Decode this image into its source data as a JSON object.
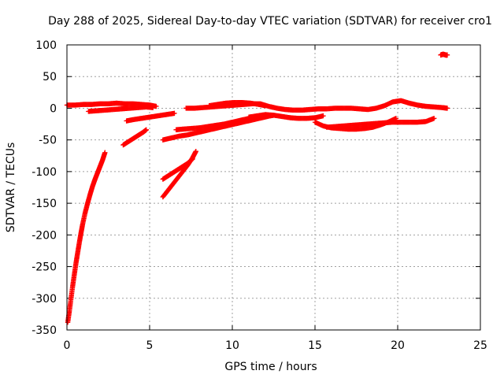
{
  "chart_data": {
    "type": "scatter",
    "title": "Day 288 of 2025, Sidereal Day-to-day VTEC variation (SDTVAR) for receiver cro1",
    "xlabel": "GPS time / hours",
    "ylabel": "SDTVAR / TECUs",
    "xlim": [
      0,
      25
    ],
    "ylim": [
      -350,
      100
    ],
    "xticks": [
      "0",
      "5",
      "10",
      "15",
      "20",
      "25"
    ],
    "yticks": [
      "100",
      "50",
      "0",
      "-50",
      "-100",
      "-150",
      "-200",
      "-250",
      "-300",
      "-350"
    ],
    "grid": true,
    "marker": "plus",
    "color": "#ff0000",
    "series": [
      {
        "x": [
          0.0,
          0.5,
          1.0,
          1.5,
          2.0,
          2.5,
          3.0,
          3.5,
          4.0,
          4.5,
          5.0,
          5.4
        ],
        "y": [
          5,
          5,
          6,
          6,
          7,
          7,
          8,
          7,
          7,
          6,
          5,
          3
        ]
      },
      {
        "x": [
          1.3,
          1.8,
          2.3,
          2.8,
          3.3,
          3.8,
          4.3,
          4.8,
          5.2
        ],
        "y": [
          -5,
          -4,
          -3,
          -2,
          -1,
          0,
          1,
          2,
          1
        ]
      },
      {
        "x": [
          0.05,
          0.15,
          0.25,
          0.35,
          0.45,
          0.55,
          0.65,
          0.75,
          0.85,
          0.95,
          1.1,
          1.25,
          1.4,
          1.55,
          1.7,
          1.85,
          2.0,
          2.15,
          2.3
        ],
        "y": [
          -338,
          -320,
          -300,
          -280,
          -262,
          -244,
          -228,
          -212,
          -197,
          -183,
          -165,
          -150,
          -136,
          -123,
          -112,
          -102,
          -92,
          -82,
          -70
        ]
      },
      {
        "x": [
          3.4,
          3.7,
          4.0,
          4.3,
          4.6,
          4.8
        ],
        "y": [
          -58,
          -53,
          -48,
          -43,
          -38,
          -34
        ]
      },
      {
        "x": [
          3.6,
          4.0,
          4.5,
          5.0,
          5.5,
          6.0,
          6.5
        ],
        "y": [
          -20,
          -18,
          -16,
          -14,
          -12,
          -10,
          -8
        ]
      },
      {
        "x": [
          5.8,
          6.1,
          6.4,
          6.7,
          7.0,
          7.3,
          7.6,
          7.8
        ],
        "y": [
          -140,
          -130,
          -120,
          -110,
          -100,
          -90,
          -78,
          -68
        ]
      },
      {
        "x": [
          5.8,
          6.1,
          6.4,
          6.7,
          7.0,
          7.3,
          7.6
        ],
        "y": [
          -112,
          -107,
          -102,
          -97,
          -92,
          -87,
          -80
        ]
      },
      {
        "x": [
          5.8,
          6.3,
          6.8,
          7.3,
          7.8,
          8.3,
          8.8,
          9.3,
          9.8,
          10.3,
          10.8,
          11.3,
          11.8,
          12.3,
          12.5
        ],
        "y": [
          -50,
          -47,
          -44,
          -42,
          -39,
          -36,
          -33,
          -30,
          -27,
          -24,
          -21,
          -18,
          -15,
          -12,
          -11
        ]
      },
      {
        "x": [
          6.6,
          7.0,
          7.5,
          8.0,
          8.5,
          9.0,
          9.5,
          10.0,
          10.5,
          11.0
        ],
        "y": [
          -34,
          -33,
          -32,
          -31,
          -29,
          -27,
          -25,
          -22,
          -19,
          -16
        ]
      },
      {
        "x": [
          7.2,
          7.7,
          8.2,
          8.7,
          9.2,
          9.7,
          10.2,
          10.7,
          11.2,
          11.7,
          12.2,
          12.7,
          13.2,
          13.7,
          14.2,
          14.7,
          15.2,
          15.7,
          16.2,
          16.7,
          17.2,
          17.7,
          18.2,
          18.7,
          19.2,
          19.7,
          20.2,
          20.7,
          21.2,
          21.7,
          22.2,
          22.7,
          23.0
        ],
        "y": [
          0,
          0,
          1,
          2,
          3,
          4,
          5,
          6,
          7,
          7,
          3,
          0,
          -2,
          -3,
          -3,
          -2,
          -1,
          -1,
          0,
          0,
          0,
          -1,
          -2,
          0,
          4,
          10,
          12,
          8,
          5,
          3,
          2,
          1,
          0
        ]
      },
      {
        "x": [
          8.6,
          9.1,
          9.6,
          10.1,
          10.6,
          11.1,
          11.6,
          12.0
        ],
        "y": [
          4,
          6,
          8,
          9,
          9,
          8,
          6,
          4
        ]
      },
      {
        "x": [
          11.0,
          11.5,
          12.0,
          12.5,
          13.0,
          13.5,
          14.0,
          14.5,
          15.0,
          15.5
        ],
        "y": [
          -14,
          -12,
          -10,
          -11,
          -13,
          -15,
          -16,
          -16,
          -15,
          -12
        ]
      },
      {
        "x": [
          15.0,
          15.5,
          16.0,
          16.5,
          17.0,
          17.5,
          18.0,
          18.5,
          19.0,
          19.5,
          19.9
        ],
        "y": [
          -22,
          -28,
          -31,
          -32,
          -33,
          -33,
          -32,
          -30,
          -26,
          -21,
          -16
        ]
      },
      {
        "x": [
          15.7,
          16.2,
          16.7,
          17.2,
          17.7,
          18.2,
          18.7,
          19.2,
          19.7,
          20.2,
          20.7,
          21.2,
          21.7,
          22.2
        ],
        "y": [
          -30,
          -29,
          -28,
          -27,
          -26,
          -25,
          -24,
          -23,
          -22,
          -22,
          -22,
          -22,
          -21,
          -16
        ]
      },
      {
        "x": [
          22.6,
          22.7,
          22.8,
          22.9,
          23.0
        ],
        "y": [
          84,
          85,
          85,
          84,
          84
        ]
      }
    ]
  }
}
